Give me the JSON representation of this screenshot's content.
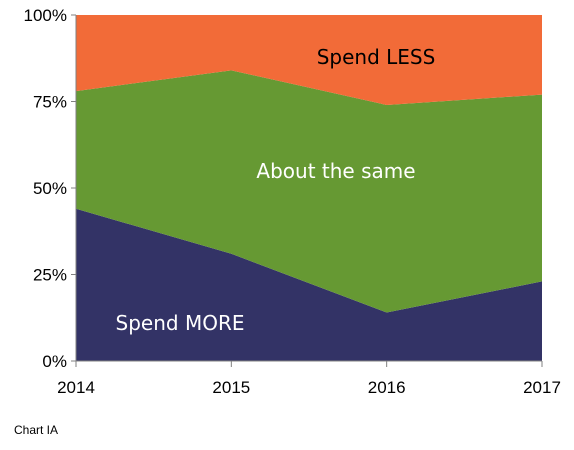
{
  "chart_data": {
    "type": "area",
    "stacked": true,
    "normalized_percent": true,
    "x": [
      2014,
      2015,
      2016,
      2017
    ],
    "x_tick_labels": [
      "2014",
      "2015",
      "2016",
      "2017"
    ],
    "y_tick_labels": [
      "0%",
      "25%",
      "50%",
      "75%",
      "100%"
    ],
    "ylim": [
      0,
      100
    ],
    "grid": false,
    "legend": "none",
    "series": [
      {
        "name": "Spend MORE",
        "values": [
          44,
          31,
          14,
          23
        ],
        "color": "#333366"
      },
      {
        "name": "About the same",
        "values": [
          34,
          53,
          60,
          54
        ],
        "color": "#669933"
      },
      {
        "name": "Spend LESS",
        "values": [
          22,
          16,
          26,
          23
        ],
        "color": "#F26B38"
      }
    ],
    "series_label_colors": [
      "#ffffff",
      "#ffffff",
      "#000000"
    ]
  },
  "caption": "Chart IA"
}
